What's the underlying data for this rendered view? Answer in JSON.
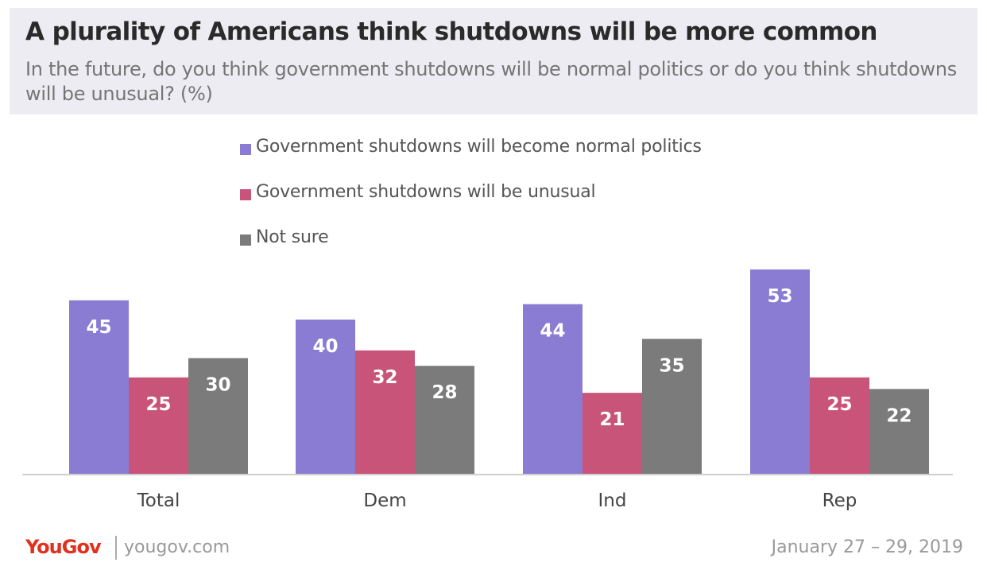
{
  "header": {
    "title": "A plurality of Americans think shutdowns will be more common",
    "subtitle": "In the future, do you think government shutdowns will be normal politics or do you think shutdowns will be unusual? (%)"
  },
  "chart_data": {
    "type": "bar",
    "title": "A plurality of Americans think shutdowns will be more common",
    "subtitle": "In the future, do you think government shutdowns will be normal politics or do you think shutdowns will be unusual? (%)",
    "categories": [
      "Total",
      "Dem",
      "Ind",
      "Rep"
    ],
    "series": [
      {
        "name": "Government shutdowns will become normal politics",
        "color": "#8a7cd3",
        "values": [
          45,
          40,
          44,
          53
        ]
      },
      {
        "name": "Government shutdowns will be unusual",
        "color": "#c9547a",
        "values": [
          25,
          32,
          21,
          25
        ]
      },
      {
        "name": "Not sure",
        "color": "#7b7b7b",
        "values": [
          30,
          28,
          35,
          22
        ]
      }
    ],
    "ylim": [
      0,
      53
    ],
    "grid": false,
    "legend_position": "top-center",
    "data_labels": true
  },
  "footer": {
    "logo": "YouGov",
    "url": "yougov.com",
    "date": "January 27 – 29, 2019"
  }
}
